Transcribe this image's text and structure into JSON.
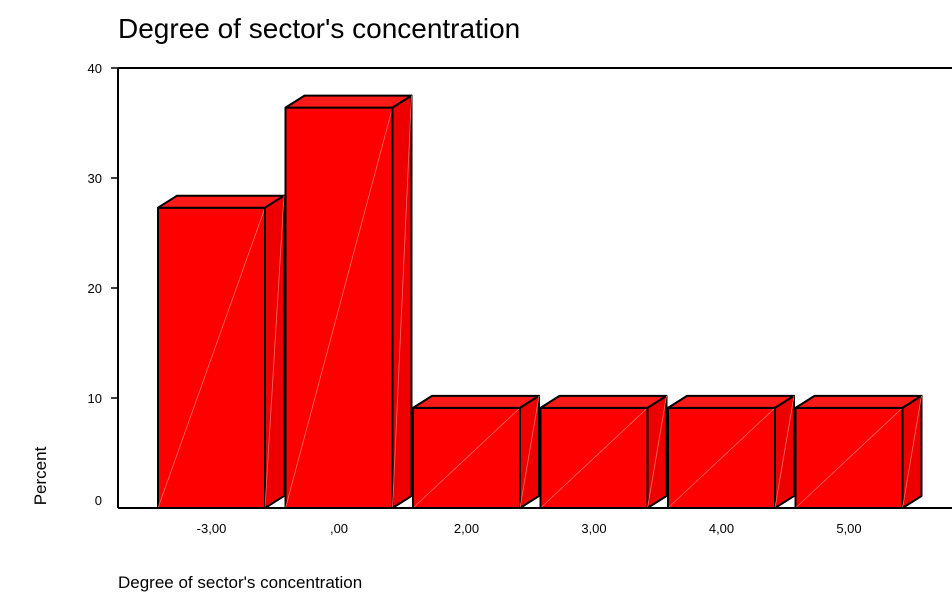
{
  "chart_data": {
    "type": "bar",
    "title": "Degree of sector's concentration",
    "xlabel": "Degree of sector's concentration",
    "ylabel": "Percent",
    "categories": [
      "-3,00",
      ",00",
      "2,00",
      "3,00",
      "4,00",
      "5,00"
    ],
    "values": [
      27.3,
      36.4,
      9.1,
      9.1,
      9.1,
      9.1
    ],
    "ylim": [
      0,
      40
    ],
    "yticks": [
      "0",
      "10",
      "20",
      "30",
      "40"
    ],
    "bar_color": "#ff0000",
    "style": "3d",
    "grid": false,
    "legend": "none"
  }
}
